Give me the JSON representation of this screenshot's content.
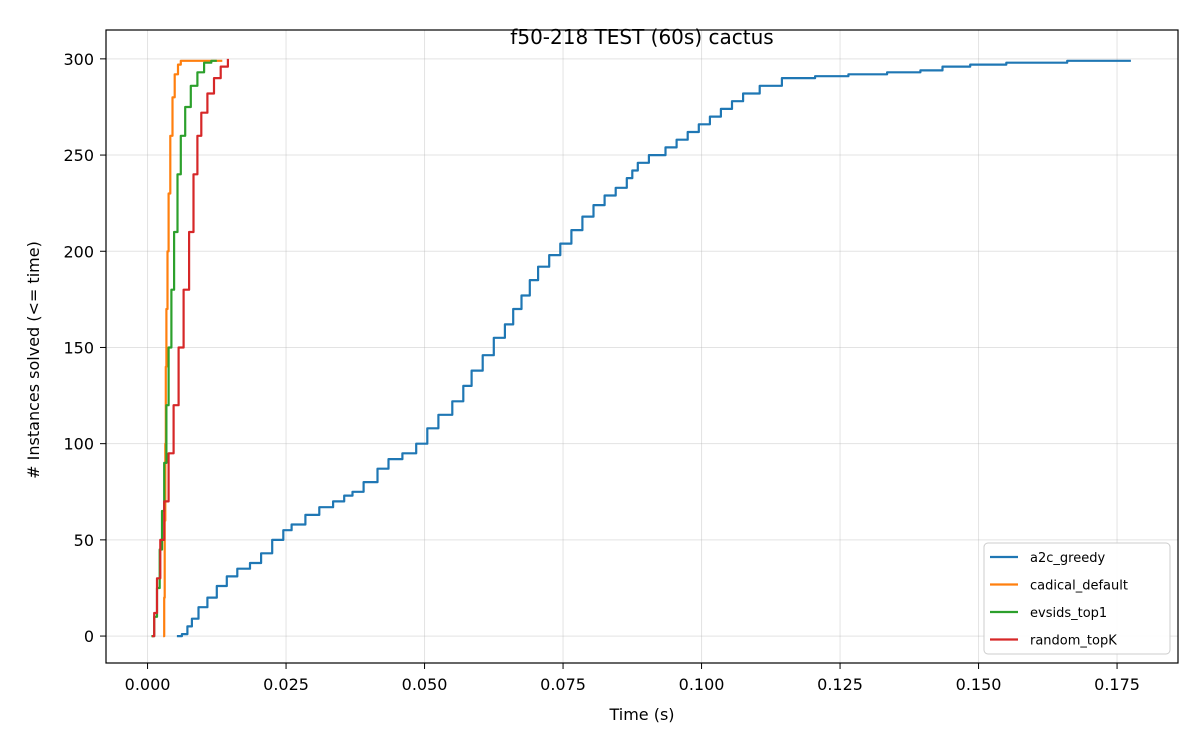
{
  "chart_data": {
    "type": "line",
    "title": "f50-218 TEST (60s) cactus",
    "xlabel": "Time (s)",
    "ylabel": "# Instances solved (<= time)",
    "xlim": [
      -0.0075,
      0.186
    ],
    "ylim": [
      -14,
      315
    ],
    "xticks": [
      0.0,
      0.025,
      0.05,
      0.075,
      0.1,
      0.125,
      0.15,
      0.175
    ],
    "xtick_labels": [
      "0.000",
      "0.025",
      "0.050",
      "0.075",
      "0.100",
      "0.125",
      "0.150",
      "0.175"
    ],
    "yticks": [
      0,
      50,
      100,
      150,
      200,
      250,
      300
    ],
    "ytick_labels": [
      "0",
      "50",
      "100",
      "150",
      "200",
      "250",
      "300"
    ],
    "grid": true,
    "legend_position": "lower-right",
    "series": [
      {
        "name": "a2c_greedy",
        "color": "#1f77b4",
        "points": [
          [
            0.0053,
            0
          ],
          [
            0.0062,
            1
          ],
          [
            0.0072,
            5
          ],
          [
            0.008,
            9
          ],
          [
            0.0092,
            15
          ],
          [
            0.0108,
            20
          ],
          [
            0.0125,
            26
          ],
          [
            0.0143,
            31
          ],
          [
            0.0162,
            35
          ],
          [
            0.0185,
            38
          ],
          [
            0.0205,
            43
          ],
          [
            0.0225,
            50
          ],
          [
            0.0245,
            55
          ],
          [
            0.026,
            58
          ],
          [
            0.0285,
            63
          ],
          [
            0.031,
            67
          ],
          [
            0.0335,
            70
          ],
          [
            0.0355,
            73
          ],
          [
            0.037,
            75
          ],
          [
            0.039,
            80
          ],
          [
            0.0415,
            87
          ],
          [
            0.0435,
            92
          ],
          [
            0.046,
            95
          ],
          [
            0.0485,
            100
          ],
          [
            0.0505,
            108
          ],
          [
            0.0525,
            115
          ],
          [
            0.055,
            122
          ],
          [
            0.057,
            130
          ],
          [
            0.0585,
            138
          ],
          [
            0.0605,
            146
          ],
          [
            0.0625,
            155
          ],
          [
            0.0645,
            162
          ],
          [
            0.066,
            170
          ],
          [
            0.0675,
            177
          ],
          [
            0.069,
            185
          ],
          [
            0.0705,
            192
          ],
          [
            0.0725,
            198
          ],
          [
            0.0745,
            204
          ],
          [
            0.0765,
            211
          ],
          [
            0.0785,
            218
          ],
          [
            0.0805,
            224
          ],
          [
            0.0825,
            229
          ],
          [
            0.0845,
            233
          ],
          [
            0.0865,
            238
          ],
          [
            0.0875,
            242
          ],
          [
            0.0885,
            246
          ],
          [
            0.0905,
            250
          ],
          [
            0.0935,
            254
          ],
          [
            0.0955,
            258
          ],
          [
            0.0975,
            262
          ],
          [
            0.0995,
            266
          ],
          [
            0.1015,
            270
          ],
          [
            0.1035,
            274
          ],
          [
            0.1055,
            278
          ],
          [
            0.1075,
            282
          ],
          [
            0.1105,
            286
          ],
          [
            0.1145,
            290
          ],
          [
            0.1205,
            291
          ],
          [
            0.1265,
            292
          ],
          [
            0.1335,
            293
          ],
          [
            0.1395,
            294
          ],
          [
            0.1435,
            296
          ],
          [
            0.1485,
            297
          ],
          [
            0.155,
            298
          ],
          [
            0.166,
            299
          ],
          [
            0.1775,
            299
          ]
        ]
      },
      {
        "name": "cadical_default",
        "color": "#ff7f0e",
        "points": [
          [
            0.0028,
            0
          ],
          [
            0.003,
            20
          ],
          [
            0.0031,
            60
          ],
          [
            0.0032,
            100
          ],
          [
            0.0033,
            140
          ],
          [
            0.0034,
            170
          ],
          [
            0.0036,
            200
          ],
          [
            0.0038,
            230
          ],
          [
            0.0041,
            260
          ],
          [
            0.0045,
            280
          ],
          [
            0.0049,
            292
          ],
          [
            0.0055,
            297
          ],
          [
            0.006,
            299
          ],
          [
            0.0085,
            299
          ],
          [
            0.0105,
            299
          ],
          [
            0.0135,
            299
          ]
        ]
      },
      {
        "name": "evsids_top1",
        "color": "#2ca02c",
        "points": [
          [
            0.0007,
            0
          ],
          [
            0.0012,
            10
          ],
          [
            0.0017,
            25
          ],
          [
            0.0022,
            45
          ],
          [
            0.0026,
            65
          ],
          [
            0.003,
            90
          ],
          [
            0.0034,
            120
          ],
          [
            0.0038,
            150
          ],
          [
            0.0043,
            180
          ],
          [
            0.0048,
            210
          ],
          [
            0.0054,
            240
          ],
          [
            0.006,
            260
          ],
          [
            0.0068,
            275
          ],
          [
            0.0078,
            286
          ],
          [
            0.009,
            293
          ],
          [
            0.0102,
            298
          ],
          [
            0.0115,
            299
          ],
          [
            0.0125,
            299
          ]
        ]
      },
      {
        "name": "random_topK",
        "color": "#d62728",
        "points": [
          [
            0.0008,
            0
          ],
          [
            0.0012,
            12
          ],
          [
            0.0017,
            30
          ],
          [
            0.0023,
            50
          ],
          [
            0.003,
            70
          ],
          [
            0.0038,
            95
          ],
          [
            0.0047,
            120
          ],
          [
            0.0056,
            150
          ],
          [
            0.0065,
            180
          ],
          [
            0.0075,
            210
          ],
          [
            0.0083,
            240
          ],
          [
            0.009,
            260
          ],
          [
            0.0097,
            272
          ],
          [
            0.0108,
            282
          ],
          [
            0.012,
            290
          ],
          [
            0.0132,
            296
          ],
          [
            0.0145,
            300
          ]
        ]
      }
    ]
  }
}
